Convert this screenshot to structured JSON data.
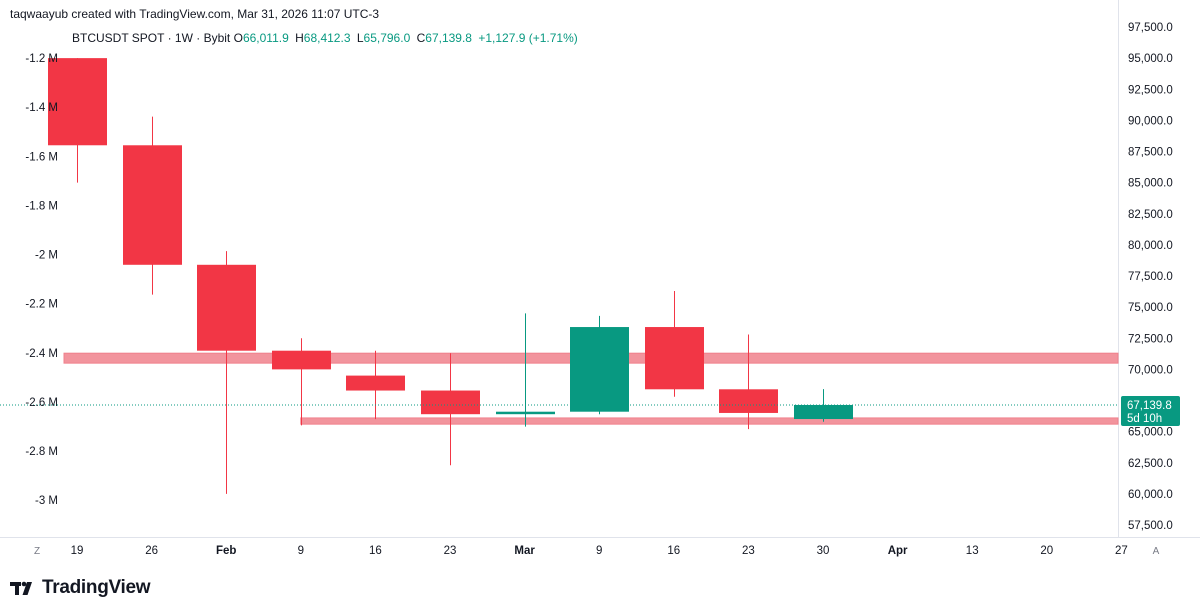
{
  "credit": "taqwaayub created with TradingView.com, Mar 31, 2026 11:07 UTC-3",
  "legend": {
    "symbol": "BTCUSDT SPOT · 1W · Bybit",
    "o_label": "O",
    "o_value": "66,011.9",
    "h_label": "H",
    "h_value": "68,412.3",
    "l_label": "L",
    "l_value": "65,796.0",
    "c_label": "C",
    "c_value": "67,139.8",
    "change": "+1,127.9 (+1.71%)"
  },
  "brand": {
    "name": "TradingView"
  },
  "corner": {
    "left": "Z",
    "right": "A"
  },
  "chart_data": {
    "type": "candlestick",
    "title": "BTCUSDT SPOT · 1W · Bybit",
    "right_axis": {
      "ylim": [
        55500,
        98000
      ],
      "ticks": [
        57500,
        60000,
        62500,
        65000,
        67500,
        70000,
        72500,
        75000,
        77500,
        80000,
        82500,
        85000,
        87500,
        90000,
        92500,
        95000,
        97500
      ],
      "tick_labels": [
        "57,500.0",
        "60,000.0",
        "62,500.0",
        "65,000.0",
        "67,500.0",
        "70,000.0",
        "72,500.0",
        "75,000.0",
        "77,500.0",
        "80,000.0",
        "82,500.0",
        "85,000.0",
        "87,500.0",
        "90,000.0",
        "92,500.0",
        "95,000.0",
        "97,500.0"
      ]
    },
    "left_axis": {
      "ticks": [
        -1.2,
        -1.4,
        -1.6,
        -1.8,
        -2.0,
        -2.2,
        -2.4,
        -2.6,
        -2.8,
        -3.0
      ],
      "tick_labels": [
        "-1.2 M",
        "-1.4 M",
        "-1.6 M",
        "-1.8 M",
        "-2 M",
        "-2.2 M",
        "-2.4 M",
        "-2.6 M",
        "-2.8 M",
        "-3 M"
      ],
      "value_at_top_tick": 95000,
      "value_at_bottom_tick": 59500
    },
    "x_labels": [
      {
        "label": "19",
        "index": 0
      },
      {
        "label": "26",
        "index": 1
      },
      {
        "label": "Feb",
        "index": 2
      },
      {
        "label": "9",
        "index": 3
      },
      {
        "label": "16",
        "index": 4
      },
      {
        "label": "23",
        "index": 5
      },
      {
        "label": "Mar",
        "index": 6
      },
      {
        "label": "9",
        "index": 7
      },
      {
        "label": "16",
        "index": 8
      },
      {
        "label": "23",
        "index": 9
      },
      {
        "label": "30",
        "index": 10
      },
      {
        "label": "Apr",
        "index": 11
      },
      {
        "label": "13",
        "index": 12
      },
      {
        "label": "20",
        "index": 13
      },
      {
        "label": "27",
        "index": 14
      }
    ],
    "candles": [
      {
        "date": "Jan 19",
        "open": 95000,
        "high": 95000,
        "low": 85000,
        "close": 88000
      },
      {
        "date": "Jan 26",
        "open": 88000,
        "high": 90300,
        "low": 76000,
        "close": 78400
      },
      {
        "date": "Feb 2",
        "open": 78400,
        "high": 79500,
        "low": 60000,
        "close": 71500
      },
      {
        "date": "Feb 9",
        "open": 71500,
        "high": 72500,
        "low": 65500,
        "close": 70000
      },
      {
        "date": "Feb 16",
        "open": 69500,
        "high": 71500,
        "low": 66000,
        "close": 68300
      },
      {
        "date": "Feb 23",
        "open": 68300,
        "high": 71300,
        "low": 62300,
        "close": 66400
      },
      {
        "date": "Mar 2",
        "open": 66400,
        "high": 74500,
        "low": 65400,
        "close": 66600
      },
      {
        "date": "Mar 9",
        "open": 66600,
        "high": 74300,
        "low": 66400,
        "close": 73400
      },
      {
        "date": "Mar 16",
        "open": 73400,
        "high": 76300,
        "low": 67800,
        "close": 68400
      },
      {
        "date": "Mar 23",
        "open": 68400,
        "high": 72800,
        "low": 65200,
        "close": 66500
      },
      {
        "date": "Mar 30",
        "open": 66011.9,
        "high": 68412.3,
        "low": 65796.0,
        "close": 67139.8
      }
    ],
    "support_zones": [
      {
        "name": "resistance-zone",
        "from_date": "Jan 19",
        "y_low": 70500,
        "y_high": 71300
      },
      {
        "name": "support-zone",
        "from_date": "Feb 9",
        "y_low": 65600,
        "y_high": 66100
      }
    ],
    "last_price": {
      "value": 67139.8,
      "label": "67,139.8",
      "countdown": "5d 10h"
    },
    "colors": {
      "up": "#089981",
      "down": "#f23645",
      "zone": "#f0818c",
      "axis_text": "#131722",
      "last_price_bg": "#089981"
    }
  }
}
